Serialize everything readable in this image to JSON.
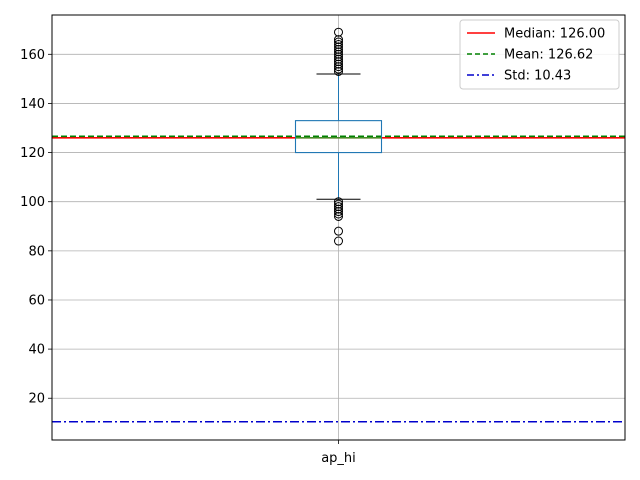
{
  "chart_data": {
    "type": "box",
    "title": "",
    "xlabel": "",
    "ylabel": "",
    "categories": [
      "ap_hi"
    ],
    "ylim": [
      3,
      176
    ],
    "yticks": [
      20,
      40,
      60,
      80,
      100,
      120,
      140,
      160
    ],
    "grid": true,
    "box": {
      "q1": 120,
      "median": 126,
      "q3": 133,
      "whisker_low": 101,
      "whisker_high": 152,
      "outliers_high": [
        153,
        154,
        155,
        156,
        157,
        158,
        159,
        160,
        161,
        162,
        163,
        164,
        165,
        166,
        169
      ],
      "outliers_low": [
        100,
        99,
        98,
        97,
        96,
        95,
        94,
        88,
        84
      ]
    },
    "reference_lines": [
      {
        "name": "median",
        "label": "Median: 126.00",
        "value": 126.0,
        "color": "#ff0000",
        "style": "solid"
      },
      {
        "name": "mean",
        "label": "Mean: 126.62",
        "value": 126.62,
        "color": "#008000",
        "style": "dashed"
      },
      {
        "name": "std",
        "label": "Std: 10.43",
        "value": 10.43,
        "color": "#0000cc",
        "style": "dashdot"
      }
    ],
    "legend_position": "top-right",
    "colors": {
      "box": "#1f77b4",
      "median_line": "#2ca02c",
      "whisker": "#000000",
      "grid": "#b0b0b0"
    }
  }
}
